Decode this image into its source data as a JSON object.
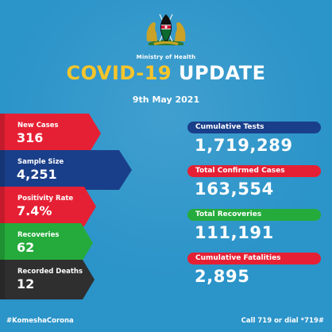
{
  "header": {
    "ministry": "Ministry of Health",
    "title_part1": "COVID-19",
    "title_part2": "UPDATE",
    "date": "9th May 2021"
  },
  "left_tiles": [
    {
      "label": "New Cases",
      "value": "316",
      "color": "#e62034"
    },
    {
      "label": "Sample Size",
      "value": "4,251",
      "color": "#1a3f8a"
    },
    {
      "label": "Positivity Rate",
      "value": "7.4%",
      "color": "#e62034"
    },
    {
      "label": "Recoveries",
      "value": "62",
      "color": "#25ab3b"
    },
    {
      "label": "Recorded Deaths",
      "value": "12",
      "color": "#2f2f2f"
    }
  ],
  "right_stats": [
    {
      "label": "Cumulative Tests",
      "value": "1,719,289",
      "color": "#1a3f8a"
    },
    {
      "label": "Total Confirmed Cases",
      "value": "163,554",
      "color": "#e62034"
    },
    {
      "label": "Total Recoveries",
      "value": "111,191",
      "color": "#25ab3b"
    },
    {
      "label": "Cumulative Fatalities",
      "value": "2,895",
      "color": "#e62034"
    }
  ],
  "footer": {
    "hashtag": "#KomeshaCorona",
    "call": "Call 719 or dial *719#"
  },
  "colors": {
    "background": "#2b94c9",
    "title_yellow": "#f7c52a"
  },
  "icons": {
    "emblem": "coat-of-arms-icon"
  }
}
